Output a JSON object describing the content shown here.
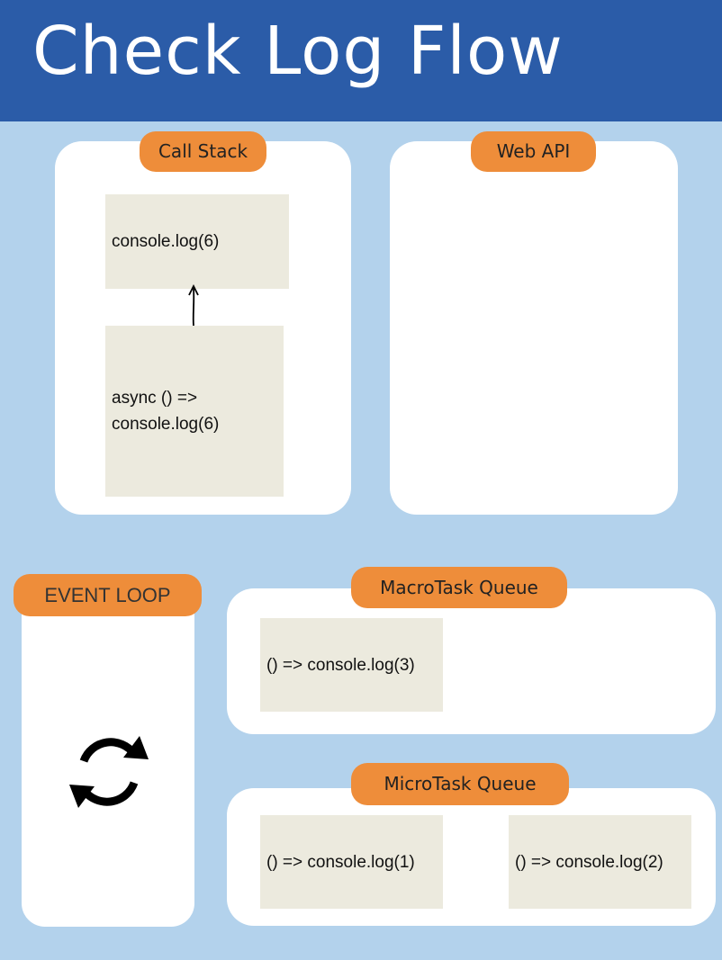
{
  "header": {
    "title": "Check Log Flow"
  },
  "call_stack": {
    "label": "Call Stack",
    "top_frame": "console.log(6)",
    "bottom_frame_line1": "async () =>",
    "bottom_frame_line2": "console.log(6)"
  },
  "web_api": {
    "label": "Web API"
  },
  "event_loop": {
    "label": "EVENT LOOP"
  },
  "macrotask_queue": {
    "label": "MacroTask Queue",
    "items": [
      "() => console.log(3)"
    ]
  },
  "microtask_queue": {
    "label": "MicroTask Queue",
    "items": [
      "() => console.log(1)",
      "() => console.log(2)"
    ]
  },
  "colors": {
    "header_bg": "#2b5ca8",
    "page_bg": "#b3d2ec",
    "pill_bg": "#ee8d3a",
    "card_bg": "#eceade"
  }
}
